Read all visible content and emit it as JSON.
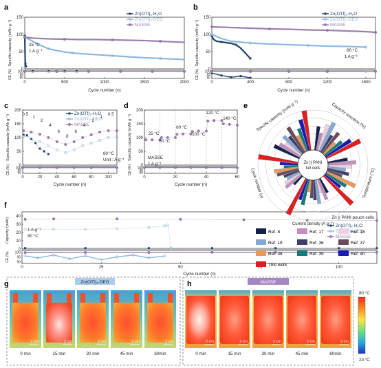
{
  "panel_letters": {
    "a": "a",
    "b": "b",
    "c": "c",
    "d": "d",
    "e": "e",
    "f": "f",
    "g": "g",
    "h": "h"
  },
  "colors": {
    "h2o": "#1f3f68",
    "deg": "#8fb8de",
    "masse": "#9b7fb2",
    "frame_dash": "#777777"
  },
  "chart_data": [
    {
      "panel": "a",
      "type": "line",
      "xlabel": "Cycle number (n)",
      "ylabel": "Specific capacity (mAh g⁻¹)",
      "ylabel_ce": "CE (%)",
      "xticks": [
        0,
        500,
        1000,
        1500,
        2000
      ],
      "yticks": [
        0,
        50,
        100,
        150
      ],
      "ce_ticks": [
        90,
        95,
        100
      ],
      "xlim": [
        0,
        2000
      ],
      "ylim": [
        0,
        150
      ],
      "ce_lim": [
        88,
        102
      ],
      "annotations": [
        "25 °C",
        "1 A g⁻¹"
      ],
      "legend": [
        "Zn(OTf)₂-H₂O",
        "Zn(OTf)₂-DEG",
        "MASSE"
      ],
      "series": [
        {
          "name": "Zn(OTf)₂-H₂O",
          "x": [
            0,
            2,
            5,
            8,
            10,
            12,
            15
          ],
          "y": [
            95,
            70,
            30,
            15,
            10,
            8,
            7
          ]
        },
        {
          "name": "Zn(OTf)₂-DEG",
          "x": [
            0,
            100,
            200,
            300,
            400,
            500,
            600,
            700,
            900,
            1100,
            1300,
            1500,
            1700,
            2000
          ],
          "y": [
            92,
            80,
            68,
            58,
            53,
            49,
            46,
            44,
            41,
            38,
            35,
            32,
            30,
            27
          ]
        },
        {
          "name": "MASSE",
          "x": [
            0,
            100,
            300,
            500,
            700,
            900,
            1100,
            1300,
            1500,
            1700,
            2000
          ],
          "y": [
            92,
            89,
            87,
            86,
            85,
            85,
            84,
            83,
            82,
            80,
            77
          ]
        }
      ],
      "ce_series": [
        {
          "name": "Zn(OTf)₂-H₂O",
          "x": [
            0,
            100,
            300,
            500,
            650
          ],
          "y": [
            99.8,
            99.9,
            99.9,
            99.9,
            99.9
          ]
        },
        {
          "name": "Zn(OTf)₂-DEG",
          "x": [
            0,
            400,
            800,
            1200,
            1600,
            2000
          ],
          "y": [
            99.8,
            99.8,
            99.9,
            99.9,
            99.9,
            99.9
          ]
        },
        {
          "name": "MASSE",
          "x": [
            0,
            400,
            800,
            1200,
            1600,
            2000
          ],
          "y": [
            99.9,
            99.9,
            99.9,
            99.9,
            99.9,
            99.9
          ]
        }
      ]
    },
    {
      "panel": "b",
      "type": "line",
      "xlabel": "Cycle number (n)",
      "ylabel": "Specific capacity (mAh g⁻¹)",
      "ylabel_ce": "CE (%)",
      "xticks": [
        0,
        400,
        800,
        1200,
        1600
      ],
      "yticks": [
        0,
        50,
        100,
        150
      ],
      "ce_ticks": [
        90,
        95,
        100
      ],
      "xlim": [
        0,
        1700
      ],
      "ylim": [
        0,
        150
      ],
      "ce_lim": [
        88,
        102
      ],
      "annotations": [
        "80 °C",
        "1 A g⁻¹"
      ],
      "legend": [
        "Zn(OTf)₂-H₂O",
        "Zn(OTf)₂-DEG",
        "MASSE"
      ],
      "series": [
        {
          "name": "Zn(OTf)₂-H₂O",
          "x": [
            0,
            20,
            50,
            100,
            150,
            200,
            250,
            300,
            350,
            400
          ],
          "y": [
            95,
            85,
            80,
            78,
            76,
            74,
            70,
            60,
            45,
            30
          ]
        },
        {
          "name": "Zn(OTf)₂-DEG",
          "x": [
            0,
            100,
            200,
            400,
            600,
            800,
            1000,
            1200,
            1400,
            1600
          ],
          "y": [
            100,
            88,
            80,
            75,
            72,
            70,
            68,
            66,
            65,
            63
          ]
        },
        {
          "name": "MASSE",
          "x": [
            0,
            200,
            400,
            600,
            800,
            1000,
            1200,
            1400,
            1600,
            1700
          ],
          "y": [
            122,
            120,
            118,
            116,
            115,
            113,
            112,
            110,
            108,
            106
          ]
        }
      ],
      "ce_series": [
        {
          "name": "Zn(OTf)₂-H₂O",
          "x": [
            0,
            100,
            200,
            300,
            400
          ],
          "y": [
            97,
            93,
            90,
            92,
            89
          ]
        },
        {
          "name": "Zn(OTf)₂-DEG",
          "x": [
            0,
            400,
            800,
            1200,
            1600
          ],
          "y": [
            99.7,
            99.7,
            99.8,
            99.8,
            99.8
          ]
        },
        {
          "name": "MASSE",
          "x": [
            0,
            400,
            800,
            1200,
            1700
          ],
          "y": [
            99.9,
            99.9,
            99.9,
            99.9,
            99.9
          ]
        }
      ]
    },
    {
      "panel": "c",
      "type": "scatter",
      "xlabel": "Cycle number (n)",
      "ylabel": "Specific capacity (mAh g⁻¹)",
      "ylabel_ce": "CE (%)",
      "xticks": [
        0,
        20,
        40,
        60,
        80,
        100
      ],
      "yticks": [
        0,
        50,
        100,
        150,
        200
      ],
      "ce_ticks": [
        90,
        95,
        100
      ],
      "xlim": [
        0,
        110
      ],
      "ylim": [
        0,
        200
      ],
      "ce_lim": [
        88,
        102
      ],
      "rate_labels": [
        "0.5",
        "1",
        "2",
        "4",
        "6",
        "8",
        "6",
        "4",
        "2",
        "1",
        "0.5"
      ],
      "annotations": [
        "80 °C",
        "Unit : A g⁻¹"
      ],
      "legend": [
        "Zn(OTf)₂-H₂O",
        "Zn(OTf)₂-DEG",
        "MASSE"
      ],
      "series": [
        {
          "name": "Zn(OTf)₂-H₂O",
          "x": [
            1,
            5,
            10,
            15,
            20,
            25,
            30
          ],
          "y": [
            110,
            108,
            95,
            80,
            60,
            50,
            40
          ]
        },
        {
          "name": "Zn(OTf)₂-DEG",
          "x": [
            1,
            10,
            20,
            30,
            40,
            50,
            60,
            70,
            80,
            90,
            100,
            110
          ],
          "y": [
            105,
            95,
            85,
            70,
            55,
            45,
            55,
            70,
            80,
            90,
            100,
            102
          ]
        },
        {
          "name": "MASSE",
          "x": [
            1,
            10,
            20,
            30,
            40,
            50,
            60,
            70,
            80,
            90,
            100,
            110
          ],
          "y": [
            125,
            120,
            112,
            100,
            85,
            75,
            85,
            100,
            110,
            120,
            125,
            125
          ]
        }
      ],
      "ce_series": [
        {
          "name": "Zn(OTf)₂-DEG",
          "x": [
            0,
            20,
            40,
            60,
            80,
            110
          ],
          "y": [
            99.5,
            99.6,
            99.7,
            99.7,
            99.7,
            99.7
          ]
        },
        {
          "name": "MASSE",
          "x": [
            0,
            20,
            40,
            60,
            80,
            110
          ],
          "y": [
            99.8,
            99.8,
            99.9,
            99.9,
            99.9,
            99.9
          ]
        }
      ]
    },
    {
      "panel": "d",
      "type": "scatter",
      "xlabel": "Cycle number (n)",
      "ylabel": "Specific capacity (mAh g⁻¹)",
      "ylabel_ce": "CE (%)",
      "xticks": [
        0,
        20,
        40,
        60
      ],
      "yticks": [
        0,
        50,
        100,
        150,
        200
      ],
      "ce_ticks": [
        90,
        95,
        100
      ],
      "xlim": [
        0,
        60
      ],
      "ylim": [
        0,
        200
      ],
      "ce_lim": [
        88,
        102
      ],
      "temp_labels": [
        "25 °C",
        "60 °C",
        "80 °C",
        "100 °C",
        "120 °C",
        "140 °C"
      ],
      "annotations": [
        "MASSE",
        "1 A g⁻¹"
      ],
      "series": [
        {
          "name": "MASSE",
          "x": [
            1,
            5,
            10,
            11,
            15,
            20,
            21,
            25,
            30,
            31,
            35,
            40,
            41,
            45,
            50,
            51,
            55,
            60
          ],
          "y": [
            92,
            92,
            92,
            100,
            100,
            100,
            112,
            113,
            113,
            122,
            124,
            124,
            160,
            162,
            162,
            150,
            148,
            145
          ]
        }
      ],
      "ce_series": [
        {
          "name": "MASSE",
          "x": [
            0,
            10,
            20,
            30,
            40,
            50,
            60
          ],
          "y": [
            99.9,
            99.9,
            99.9,
            99.9,
            99.9,
            99.8,
            99.5
          ]
        }
      ]
    },
    {
      "panel": "e",
      "type": "bar",
      "center_label": [
        "Zn || PANI",
        "full cells"
      ],
      "axes": [
        "Capacity retention (%)",
        "Temperature (°C)",
        "Current density (A g⁻¹)",
        "Cycle number (n)",
        "Specific capacity (mAh g⁻¹)"
      ],
      "axis_ticks": {
        "Capacity retention (%)": [
          "100",
          "50"
        ],
        "Temperature (°C)": [
          "150"
        ],
        "Current density (A g⁻¹)": [
          "6",
          "3"
        ],
        "Cycle number (n)": [
          "2000"
        ],
        "Specific capacity (mAh g⁻¹)": [
          "150"
        ]
      },
      "legend": [
        "Ref. 8",
        "Ref. 17",
        "Ref. 18",
        "Ref. 19",
        "Ref. 36",
        "Ref. 37",
        "Ref. 38",
        "Ref. 39",
        "Ref. 40",
        "This work"
      ],
      "legend_colors": [
        "#14214a",
        "#c48fc0",
        "#ecd0e4",
        "#86a8d4",
        "#3d3f6a",
        "#6b4a5c",
        "#e89a58",
        "#157a7a",
        "#1a1ab5",
        "#dd1f1f"
      ]
    },
    {
      "panel": "f",
      "type": "scatter",
      "title": "Zn || PANI pouch cells",
      "xlabel": "Cycle number (n)",
      "ylabel": "Capacity (mAh)",
      "ylabel_ce": "CE (%)",
      "xticks": [
        0,
        25,
        50,
        75,
        100
      ],
      "yticks": [
        0,
        10,
        20,
        30,
        40
      ],
      "ce_ticks": [
        90,
        95,
        100
      ],
      "xlim": [
        0,
        112
      ],
      "ylim": [
        0,
        45
      ],
      "ce_lim": [
        88,
        102
      ],
      "annotations": [
        "1 A g⁻¹",
        "80 °C"
      ],
      "legend": [
        "Zn(OTf)₂-H₂O",
        "Zn(OTf)₂-DEG",
        "MASSE"
      ],
      "series": [
        {
          "name": "Zn(OTf)₂-H₂O",
          "x": [
            1,
            20,
            40,
            60,
            80,
            100,
            112
          ],
          "y": [
            1,
            1,
            1,
            1,
            1,
            1,
            1
          ]
        },
        {
          "name": "Zn(OTf)₂-DEG",
          "x": [
            1,
            10,
            20,
            30,
            40,
            45,
            46,
            47
          ],
          "y": [
            24,
            24,
            24,
            24.5,
            26,
            28,
            29,
            1
          ]
        },
        {
          "name": "MASSE",
          "x": [
            1,
            10,
            30,
            50,
            70,
            90,
            112
          ],
          "y": [
            36,
            36.5,
            36.5,
            36,
            35.5,
            35,
            34.5
          ]
        }
      ],
      "ce_series": [
        {
          "name": "Zn(OTf)₂-DEG",
          "x": [
            1,
            5,
            10,
            15,
            20,
            25,
            30,
            35,
            40,
            45
          ],
          "y": [
            96,
            94,
            97,
            93,
            96,
            92,
            95,
            97,
            94,
            96
          ]
        },
        {
          "name": "MASSE",
          "x": [
            1,
            20,
            40,
            60,
            80,
            100,
            112
          ],
          "y": [
            99.7,
            99.8,
            99.8,
            99.9,
            99.9,
            99.9,
            99.9
          ]
        }
      ]
    }
  ],
  "panel_g": {
    "title": "Zn(OTf)₂-DEG",
    "scale_label": "2 cm",
    "times": [
      "0 min",
      "15 min",
      "30 min",
      "45 min",
      "60min"
    ]
  },
  "panel_h": {
    "title": "MASSE",
    "scale_label": "2 cm",
    "times": [
      "0 min",
      "15 min",
      "30 min",
      "45 min",
      "60min"
    ]
  },
  "colorbar": {
    "max_label": "80 °C",
    "min_label": "23 °C"
  }
}
